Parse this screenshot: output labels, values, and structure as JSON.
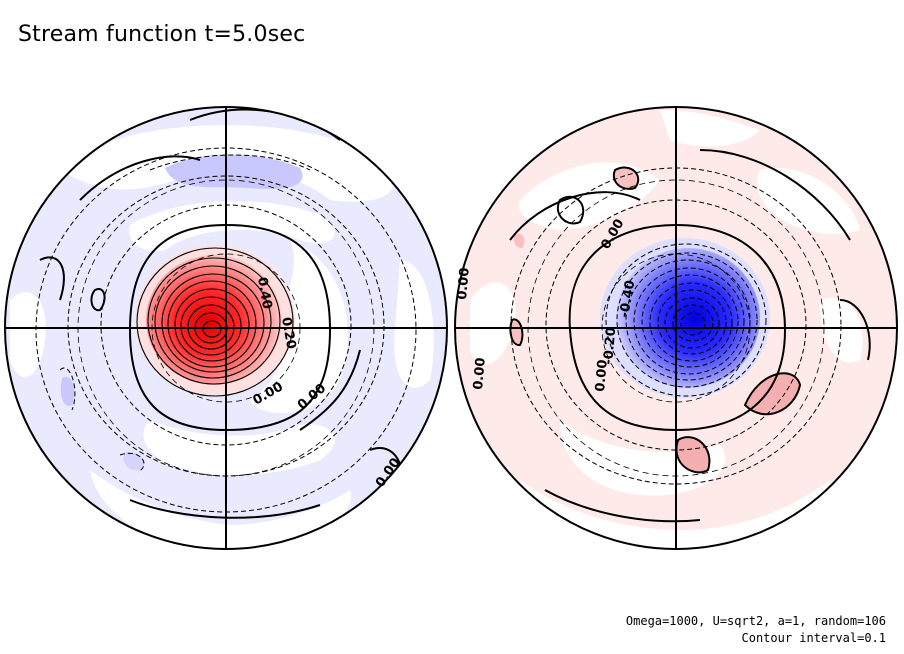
{
  "title": "Stream function t=5.0sec",
  "footnote": {
    "params": "Omega=1000, U=sqrt2, a=1, random=106",
    "contour_interval": "Contour interval=0.1"
  },
  "hemispheres": [
    {
      "name": "left",
      "vortex_sign": "positive",
      "contour_labels": [
        "0.40",
        "0.20",
        "0.00",
        "0.00",
        "0.00"
      ]
    },
    {
      "name": "right",
      "vortex_sign": "negative",
      "contour_labels": [
        "0.00",
        "0.00",
        "-0.40",
        "-0.20",
        "0.00",
        "0.00"
      ]
    }
  ],
  "colors": {
    "positive_strong": "#ff1f1f",
    "positive_weak": "#ffe6e6",
    "negative_strong": "#1f1fff",
    "negative_weak": "#e6e6ff",
    "line": "#000000"
  }
}
